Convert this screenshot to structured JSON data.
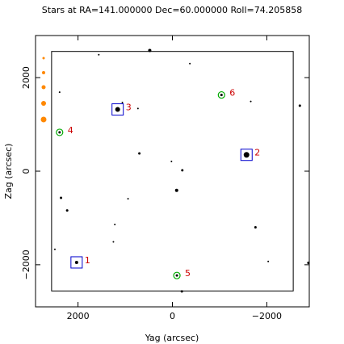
{
  "chart_data": {
    "type": "scatter",
    "title": "Stars at RA=141.000000 Dec=60.000000 Roll=74.205858",
    "xlabel": "Yag (arcsec)",
    "ylabel": "Zag (arcsec)",
    "xlim": [
      2900,
      -2900
    ],
    "ylim": [
      -2900,
      2900
    ],
    "xticks": [
      2000,
      0,
      -2000
    ],
    "yticks": [
      -2000,
      0,
      2000
    ],
    "tick_labels_x": [
      "2000",
      "0",
      "−2000"
    ],
    "tick_labels_y": [
      "−2000",
      "0",
      "2000"
    ],
    "inner_field_box": {
      "yag": [
        -2560,
        2560
      ],
      "zag": [
        -2560,
        2560
      ]
    },
    "grid": false,
    "legend": "none",
    "colors": {
      "star": "#000000",
      "guide_box": "#0000cc",
      "acq_circle": "#00aa00",
      "label": "#cc0000",
      "magnitude_key": "#ff8800"
    },
    "labeled_stars": [
      {
        "id": "1",
        "yag": 2030,
        "zag": -1950,
        "marker": "box"
      },
      {
        "id": "2",
        "yag": -1570,
        "zag": 350,
        "marker": "box"
      },
      {
        "id": "3",
        "yag": 1160,
        "zag": 1320,
        "marker": "box"
      },
      {
        "id": "4",
        "yag": 2390,
        "zag": 830,
        "marker": "circle"
      },
      {
        "id": "5",
        "yag": -95,
        "zag": -2230,
        "marker": "circle"
      },
      {
        "id": "6",
        "yag": -1040,
        "zag": 1630,
        "marker": "circle"
      }
    ],
    "field_stars": [
      {
        "yag": 1560,
        "zag": 2490,
        "r": 1
      },
      {
        "yag": 480,
        "zag": 2580,
        "r": 2
      },
      {
        "yag": -370,
        "zag": 2300,
        "r": 1
      },
      {
        "yag": 2390,
        "zag": 1690,
        "r": 1
      },
      {
        "yag": -1660,
        "zag": 1490,
        "r": 1
      },
      {
        "yag": 1060,
        "zag": 1470,
        "r": 1
      },
      {
        "yag": 730,
        "zag": 1340,
        "r": 1
      },
      {
        "yag": -2700,
        "zag": 1400,
        "r": 1.5
      },
      {
        "yag": 700,
        "zag": 380,
        "r": 1.5
      },
      {
        "yag": 20,
        "zag": 210,
        "r": 1
      },
      {
        "yag": -210,
        "zag": 20,
        "r": 1.5
      },
      {
        "yag": -90,
        "zag": -410,
        "r": 2
      },
      {
        "yag": 2360,
        "zag": -570,
        "r": 1.5
      },
      {
        "yag": 940,
        "zag": -590,
        "r": 1
      },
      {
        "yag": 2230,
        "zag": -840,
        "r": 1.5
      },
      {
        "yag": 1220,
        "zag": -1140,
        "r": 1
      },
      {
        "yag": -1760,
        "zag": -1200,
        "r": 1.5
      },
      {
        "yag": 1250,
        "zag": -1510,
        "r": 1
      },
      {
        "yag": 2490,
        "zag": -1670,
        "r": 1
      },
      {
        "yag": -2030,
        "zag": -1930,
        "r": 1
      },
      {
        "yag": -2880,
        "zag": -1960,
        "r": 1.5
      },
      {
        "yag": -200,
        "zag": -2570,
        "r": 1.5
      }
    ],
    "magnitude_key_r": [
      1.5,
      2,
      2.5,
      3,
      3.5
    ]
  }
}
